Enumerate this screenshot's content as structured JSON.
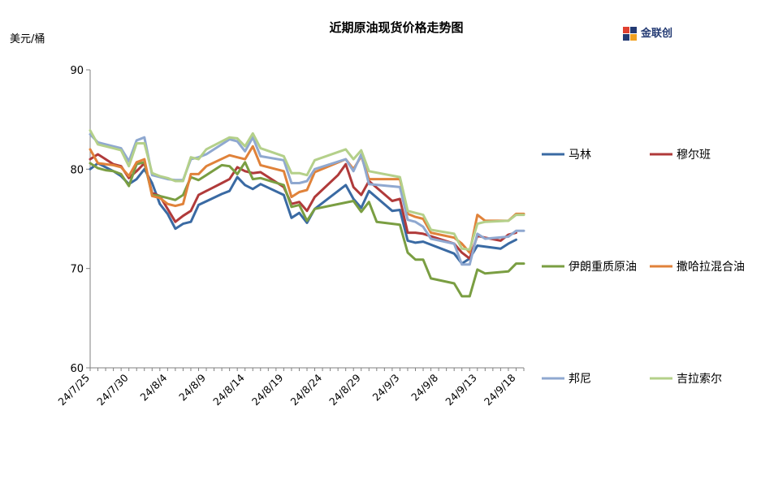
{
  "header": {
    "title": "近期原油现货价格走势图",
    "unit": "美元/桶",
    "logo_text": "金联创"
  },
  "chart_data": {
    "type": "line",
    "title": "近期原油现货价格走势图",
    "ylabel": "美元/桶",
    "ylim": [
      60,
      90
    ],
    "yticks": [
      60,
      70,
      80,
      90
    ],
    "grid": false,
    "legend_placement": "right",
    "x_tick_labels": [
      "24/7/25",
      "24/7/30",
      "24/8/4",
      "24/8/9",
      "24/8/14",
      "24/8/19",
      "24/8/24",
      "24/8/29",
      "24/9/3",
      "24/9/8",
      "24/9/13",
      "24/9/18"
    ],
    "x_tick_days": [
      0,
      5,
      10,
      15,
      20,
      25,
      30,
      35,
      40,
      45,
      50,
      55
    ],
    "series": [
      {
        "name": "马林",
        "color": "#3a6aa3",
        "points": [
          [
            0,
            80.0
          ],
          [
            0.5,
            80.3
          ],
          [
            1,
            80.6
          ],
          [
            2,
            80.2
          ],
          [
            3,
            79.8
          ],
          [
            4,
            79.3
          ],
          [
            5,
            78.5
          ],
          [
            6,
            79.0
          ],
          [
            7,
            80.0
          ],
          [
            8,
            78.6
          ],
          [
            9,
            76.5
          ],
          [
            10,
            75.5
          ],
          [
            11,
            74.0
          ],
          [
            12,
            74.5
          ],
          [
            13,
            74.7
          ],
          [
            14,
            76.4
          ],
          [
            17,
            77.5
          ],
          [
            18,
            77.8
          ],
          [
            19,
            79.2
          ],
          [
            20,
            78.4
          ],
          [
            21,
            78.0
          ],
          [
            22,
            78.5
          ],
          [
            25,
            77.4
          ],
          [
            26,
            75.1
          ],
          [
            27,
            75.6
          ],
          [
            28,
            74.6
          ],
          [
            29,
            76.0
          ],
          [
            33,
            78.4
          ],
          [
            34,
            77.0
          ],
          [
            35,
            76.1
          ],
          [
            36,
            77.8
          ],
          [
            39,
            75.8
          ],
          [
            40,
            75.9
          ],
          [
            41,
            72.8
          ],
          [
            42,
            72.6
          ],
          [
            43,
            72.7
          ],
          [
            47,
            71.5
          ],
          [
            48,
            70.5
          ],
          [
            49,
            71.0
          ],
          [
            50,
            72.3
          ],
          [
            53,
            72.0
          ],
          [
            54,
            72.5
          ],
          [
            55,
            72.9
          ]
        ]
      },
      {
        "name": "穆尔班",
        "color": "#b03a3a",
        "points": [
          [
            0,
            81.0
          ],
          [
            1,
            81.5
          ],
          [
            2,
            81.0
          ],
          [
            3,
            80.5
          ],
          [
            4,
            80.3
          ],
          [
            5,
            79.1
          ],
          [
            6,
            79.8
          ],
          [
            7,
            80.6
          ],
          [
            8,
            77.6
          ],
          [
            9,
            77.3
          ],
          [
            10,
            76.0
          ],
          [
            11,
            74.7
          ],
          [
            12,
            75.3
          ],
          [
            13,
            75.8
          ],
          [
            14,
            77.4
          ],
          [
            17,
            78.6
          ],
          [
            18,
            79.0
          ],
          [
            19,
            80.2
          ],
          [
            20,
            79.8
          ],
          [
            21,
            79.6
          ],
          [
            22,
            79.7
          ],
          [
            25,
            78.2
          ],
          [
            26,
            76.5
          ],
          [
            27,
            76.7
          ],
          [
            28,
            75.8
          ],
          [
            29,
            77.2
          ],
          [
            32,
            79.4
          ],
          [
            33,
            80.5
          ],
          [
            34,
            78.2
          ],
          [
            35,
            77.4
          ],
          [
            36,
            78.8
          ],
          [
            39,
            76.8
          ],
          [
            40,
            77.0
          ],
          [
            41,
            73.6
          ],
          [
            42,
            73.6
          ],
          [
            43,
            73.5
          ],
          [
            47,
            72.5
          ],
          [
            48,
            71.6
          ],
          [
            49,
            71.0
          ],
          [
            50,
            73.3
          ],
          [
            51,
            73.1
          ],
          [
            53,
            72.8
          ],
          [
            54,
            73.4
          ],
          [
            55,
            73.6
          ]
        ]
      },
      {
        "name": "伊朗重质原油",
        "color": "#7a9e42",
        "points": [
          [
            0,
            80.6
          ],
          [
            1,
            80.1
          ],
          [
            2,
            79.9
          ],
          [
            3,
            79.8
          ],
          [
            4,
            79.5
          ],
          [
            5,
            78.3
          ],
          [
            6,
            80.5
          ],
          [
            7,
            80.7
          ],
          [
            8,
            77.4
          ],
          [
            9,
            77.3
          ],
          [
            10,
            77.1
          ],
          [
            11,
            76.9
          ],
          [
            12,
            77.4
          ],
          [
            13,
            79.2
          ],
          [
            14,
            78.9
          ],
          [
            17,
            80.4
          ],
          [
            18,
            80.3
          ],
          [
            19,
            79.5
          ],
          [
            20,
            80.7
          ],
          [
            21,
            79.0
          ],
          [
            22,
            79.1
          ],
          [
            25,
            78.4
          ],
          [
            26,
            76.2
          ],
          [
            27,
            76.4
          ],
          [
            28,
            74.8
          ],
          [
            29,
            76.0
          ],
          [
            34,
            76.8
          ],
          [
            35,
            75.7
          ],
          [
            36,
            76.7
          ],
          [
            37,
            74.7
          ],
          [
            40,
            74.4
          ],
          [
            41,
            71.6
          ],
          [
            42,
            70.9
          ],
          [
            43,
            70.9
          ],
          [
            44,
            69.0
          ],
          [
            47,
            68.5
          ],
          [
            48,
            67.2
          ],
          [
            49,
            67.2
          ],
          [
            50,
            69.9
          ],
          [
            51,
            69.5
          ],
          [
            54,
            69.7
          ],
          [
            55,
            70.5
          ],
          [
            56,
            70.5
          ]
        ]
      },
      {
        "name": "撒哈拉混合油",
        "color": "#e0823a",
        "points": [
          [
            0,
            82.0
          ],
          [
            1,
            80.6
          ],
          [
            2,
            80.5
          ],
          [
            3,
            80.4
          ],
          [
            4,
            80.2
          ],
          [
            5,
            79.3
          ],
          [
            6,
            80.7
          ],
          [
            7,
            81.0
          ],
          [
            8,
            77.3
          ],
          [
            9,
            77.1
          ],
          [
            10,
            76.5
          ],
          [
            11,
            76.3
          ],
          [
            12,
            76.5
          ],
          [
            13,
            79.5
          ],
          [
            14,
            79.5
          ],
          [
            15,
            80.3
          ],
          [
            18,
            81.4
          ],
          [
            19,
            81.2
          ],
          [
            20,
            81.0
          ],
          [
            21,
            82.3
          ],
          [
            22,
            80.4
          ],
          [
            25,
            79.8
          ],
          [
            26,
            77.2
          ],
          [
            27,
            77.7
          ],
          [
            28,
            77.9
          ],
          [
            29,
            79.7
          ],
          [
            33,
            81.0
          ],
          [
            34,
            80.0
          ],
          [
            35,
            81.3
          ],
          [
            36,
            79.0
          ],
          [
            40,
            79.0
          ],
          [
            41,
            75.5
          ],
          [
            42,
            75.2
          ],
          [
            43,
            75.0
          ],
          [
            44,
            73.6
          ],
          [
            47,
            73.1
          ],
          [
            48,
            72.5
          ],
          [
            49,
            71.6
          ],
          [
            50,
            75.4
          ],
          [
            51,
            74.8
          ],
          [
            54,
            74.8
          ],
          [
            55,
            75.5
          ],
          [
            56,
            75.5
          ]
        ]
      },
      {
        "name": "邦尼",
        "color": "#8fa8d0",
        "points": [
          [
            0,
            83.5
          ],
          [
            1,
            82.7
          ],
          [
            2,
            82.5
          ],
          [
            3,
            82.3
          ],
          [
            4,
            82.1
          ],
          [
            5,
            80.8
          ],
          [
            6,
            82.9
          ],
          [
            7,
            83.2
          ],
          [
            8,
            79.4
          ],
          [
            9,
            79.2
          ],
          [
            10,
            79.0
          ],
          [
            11,
            78.9
          ],
          [
            12,
            78.9
          ],
          [
            13,
            81.0
          ],
          [
            14,
            81.2
          ],
          [
            15,
            81.5
          ],
          [
            18,
            83.0
          ],
          [
            19,
            82.8
          ],
          [
            20,
            81.8
          ],
          [
            21,
            83.2
          ],
          [
            22,
            81.3
          ],
          [
            25,
            80.9
          ],
          [
            26,
            78.6
          ],
          [
            27,
            78.6
          ],
          [
            28,
            78.8
          ],
          [
            29,
            80.0
          ],
          [
            33,
            81.0
          ],
          [
            34,
            79.8
          ],
          [
            35,
            81.5
          ],
          [
            36,
            78.5
          ],
          [
            40,
            78.2
          ],
          [
            41,
            74.9
          ],
          [
            42,
            74.7
          ],
          [
            43,
            74.2
          ],
          [
            44,
            73.0
          ],
          [
            47,
            72.5
          ],
          [
            48,
            70.4
          ],
          [
            49,
            70.4
          ],
          [
            50,
            73.5
          ],
          [
            51,
            73.0
          ],
          [
            54,
            73.2
          ],
          [
            55,
            73.8
          ],
          [
            56,
            73.8
          ]
        ]
      },
      {
        "name": "吉拉索尔",
        "color": "#b4d08a",
        "points": [
          [
            0,
            83.9
          ],
          [
            1,
            82.5
          ],
          [
            2,
            82.3
          ],
          [
            3,
            82.1
          ],
          [
            4,
            81.9
          ],
          [
            5,
            80.3
          ],
          [
            6,
            82.6
          ],
          [
            7,
            82.6
          ],
          [
            8,
            79.6
          ],
          [
            9,
            79.3
          ],
          [
            10,
            79.1
          ],
          [
            11,
            78.8
          ],
          [
            12,
            78.8
          ],
          [
            13,
            81.2
          ],
          [
            14,
            81.0
          ],
          [
            15,
            82.0
          ],
          [
            18,
            83.2
          ],
          [
            19,
            83.1
          ],
          [
            20,
            82.3
          ],
          [
            21,
            83.6
          ],
          [
            22,
            82.1
          ],
          [
            25,
            81.3
          ],
          [
            26,
            79.6
          ],
          [
            27,
            79.6
          ],
          [
            28,
            79.4
          ],
          [
            29,
            80.9
          ],
          [
            33,
            82.0
          ],
          [
            34,
            81.0
          ],
          [
            35,
            81.9
          ],
          [
            36,
            79.8
          ],
          [
            40,
            79.2
          ],
          [
            41,
            75.8
          ],
          [
            42,
            75.6
          ],
          [
            43,
            75.4
          ],
          [
            44,
            73.9
          ],
          [
            47,
            73.5
          ],
          [
            48,
            72.0
          ],
          [
            49,
            71.9
          ],
          [
            50,
            74.5
          ],
          [
            51,
            74.7
          ],
          [
            54,
            74.8
          ],
          [
            55,
            75.4
          ],
          [
            56,
            75.4
          ]
        ]
      }
    ]
  }
}
